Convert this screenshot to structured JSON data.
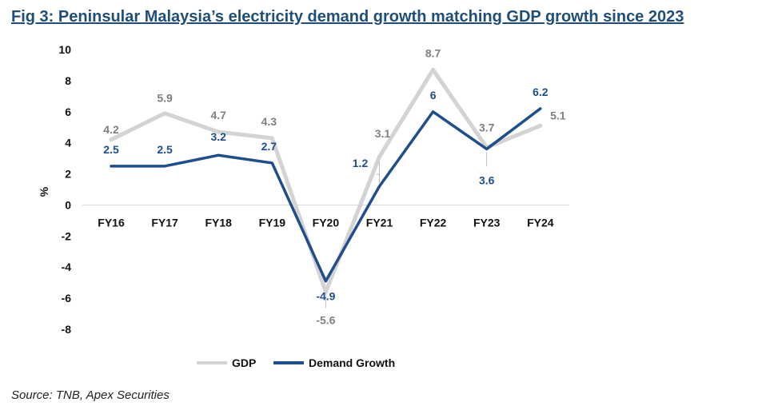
{
  "figure": {
    "title": "Fig 3: Peninsular Malaysia’s electricity demand growth matching GDP growth since 2023",
    "source": "Source: TNB, Apex Securities"
  },
  "chart_data": {
    "type": "line",
    "categories": [
      "FY16",
      "FY17",
      "FY18",
      "FY19",
      "FY20",
      "FY21",
      "FY22",
      "FY23",
      "FY24"
    ],
    "series": [
      {
        "name": "GDP",
        "values": [
          4.2,
          5.9,
          4.7,
          4.3,
          -5.6,
          3.1,
          8.7,
          3.7,
          5.1
        ],
        "color": "#d3d3d3"
      },
      {
        "name": "Demand Growth",
        "values": [
          2.5,
          2.5,
          3.2,
          2.7,
          -4.9,
          1.2,
          6,
          3.6,
          6.2
        ],
        "color": "#1f4e8c"
      }
    ],
    "ylabel": "%",
    "ylim": [
      -8,
      10
    ],
    "yticks": [
      10,
      8,
      6,
      4,
      2,
      0,
      -2,
      -4,
      -6,
      -8
    ],
    "legend": "bottom",
    "grid": false,
    "label_color_gdp": "#7f7f7f",
    "label_color_demand": "#1f4e8c"
  }
}
